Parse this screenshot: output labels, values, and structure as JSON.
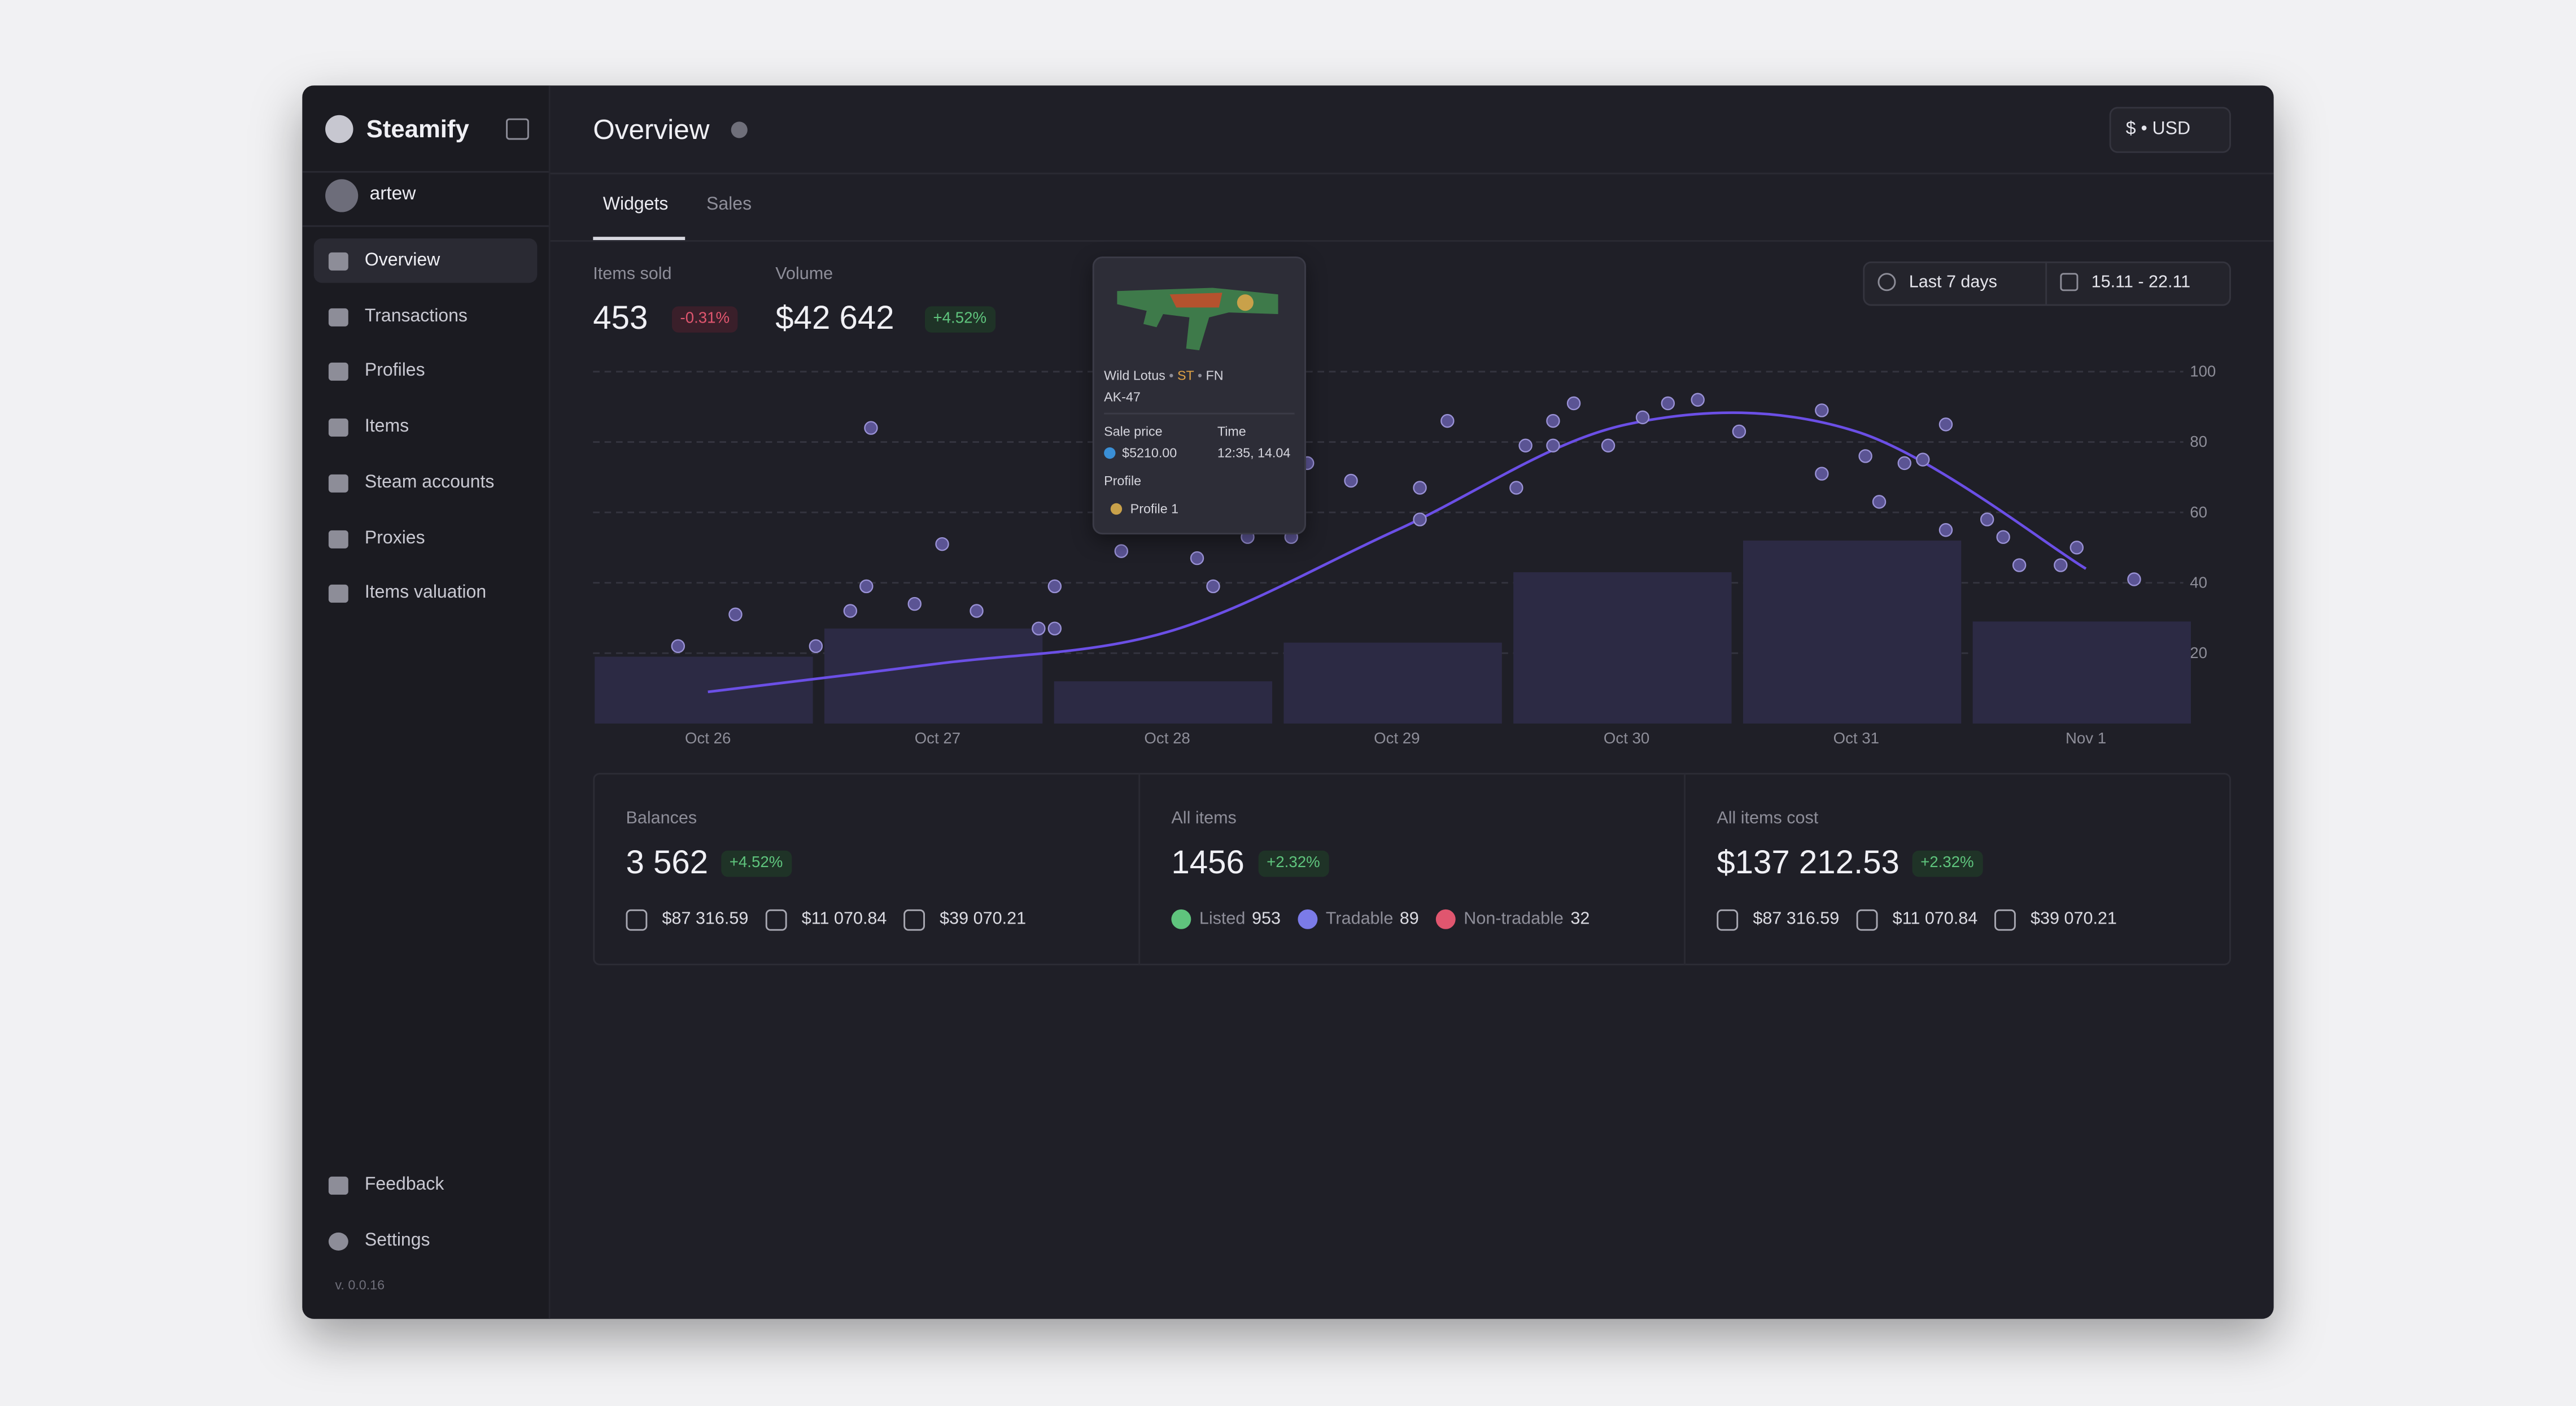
{
  "sidebar": {
    "brand": "Steamify",
    "user": "artew",
    "nav": [
      "Overview",
      "Transactions",
      "Profiles",
      "Items",
      "Steam accounts",
      "Proxies",
      "Items valuation"
    ],
    "footer": [
      "Feedback",
      "Settings"
    ],
    "version": "v. 0.0.16"
  },
  "header": {
    "title": "Overview",
    "currency": "$ • USD"
  },
  "tabs": [
    "Widgets",
    "Sales"
  ],
  "stats": [
    {
      "label": "Items sold",
      "value": "453",
      "change": "-0.31%"
    },
    {
      "label": "Volume",
      "value": "$42 642",
      "change": "+4.52%"
    }
  ],
  "filters": {
    "range": "Last 7 days",
    "dates": "15.11 - 22.11"
  },
  "tooltip": {
    "name": "Wild Lotus",
    "separator": "•",
    "tags": [
      "ST",
      "FN"
    ],
    "weapon": "AK-47",
    "sale_price_label": "Sale price",
    "sale_price": "$5210.00",
    "time_label": "Time",
    "time": "12:35, 14.04",
    "profile_label": "Profile",
    "profile": "Profile 1"
  },
  "cards": [
    {
      "title": "Balances",
      "value": "3 562",
      "change": "+4.52%",
      "items": [
        "$87 316.59",
        "$11 070.84",
        "$39 070.21"
      ]
    },
    {
      "title": "All items",
      "value": "1456",
      "change": "+2.32%",
      "items": [
        {
          "label": "Listed",
          "value": "953"
        },
        {
          "label": "Tradable",
          "value": "89"
        },
        {
          "label": "Non-tradable",
          "value": "32"
        }
      ]
    },
    {
      "title": "All items cost",
      "value": "$137 212.53",
      "change": "+2.32%",
      "items": [
        "$87 316.59",
        "$11 070.84",
        "$39 070.21"
      ]
    }
  ],
  "chart_data": {
    "type": "bar",
    "categories": [
      "Oct 26",
      "Oct 27",
      "Oct 28",
      "Oct 29",
      "Oct 30",
      "Oct 31",
      "Nov 1"
    ],
    "ylim": [
      0,
      100
    ],
    "yticks": [
      20,
      40,
      60,
      80,
      100
    ],
    "grid": true,
    "color": "#2c2a44",
    "values": [
      19,
      27,
      12,
      23,
      43,
      52,
      29
    ],
    "line": {
      "color": "#6b4fe6",
      "values": [
        9,
        17,
        26,
        55,
        85,
        83,
        44
      ]
    },
    "scatter": {
      "color": "#5b5494",
      "x": [
        -0.13,
        0.12,
        0.47,
        0.62,
        0.69,
        0.71,
        0.9,
        1.02,
        1.17,
        1.44,
        1.51,
        1.51,
        1.8,
        2.13,
        2.2,
        2.35,
        2.54,
        2.61,
        2.8,
        3.1,
        3.1,
        3.22,
        3.52,
        3.56,
        3.68,
        3.68,
        3.77,
        3.92,
        4.07,
        4.18,
        4.31,
        4.49,
        4.85,
        4.85,
        5.04,
        5.1,
        5.21,
        5.29,
        5.39,
        5.39,
        5.57,
        5.64,
        5.71,
        5.89,
        5.96,
        6.21
      ],
      "values": [
        22,
        31,
        22,
        32,
        39,
        84,
        34,
        51,
        32,
        27,
        27,
        39,
        49,
        47,
        39,
        53,
        53,
        74,
        69,
        67,
        58,
        86,
        67,
        79,
        79,
        86,
        91,
        79,
        87,
        91,
        92,
        83,
        89,
        71,
        76,
        63,
        74,
        75,
        85,
        55,
        58,
        53,
        45,
        45,
        50,
        41
      ]
    }
  }
}
